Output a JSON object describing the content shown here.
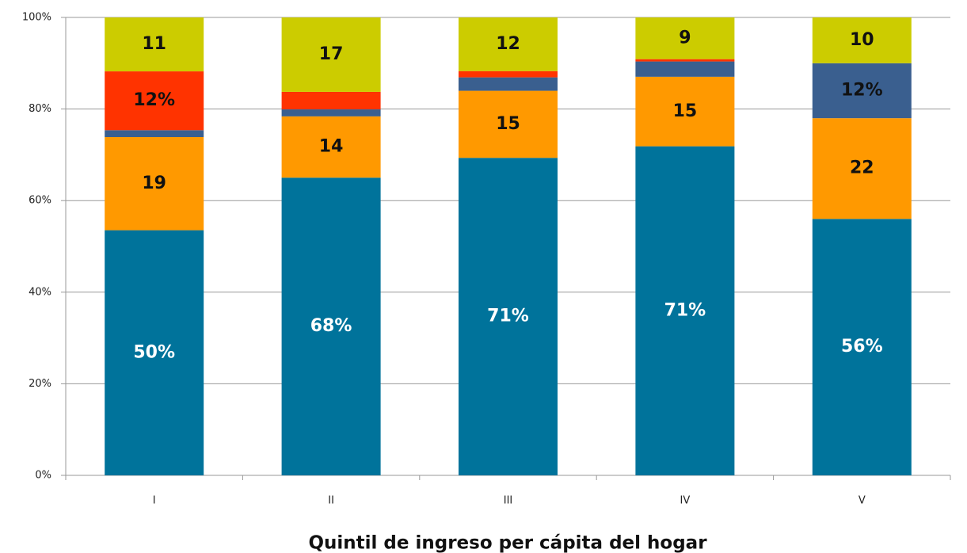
{
  "chart_data": {
    "type": "bar",
    "stacking": "percent",
    "categories": [
      "I",
      "II",
      "III",
      "IV",
      "V"
    ],
    "series": [
      {
        "color": "#00739b",
        "values": [
          50,
          68,
          71,
          71,
          56
        ],
        "value_labels": [
          "50%",
          "68%",
          "71%",
          "71%",
          "56%"
        ],
        "label_color": "#ffffff"
      },
      {
        "color": "#ff9900",
        "values": [
          19,
          14,
          15,
          15,
          22
        ],
        "value_labels": [
          "19",
          "14",
          "15",
          "15",
          "22"
        ],
        "label_color": "#111111"
      },
      {
        "color": "#3a5f8f",
        "values": [
          1.4,
          1.6,
          3,
          3.3,
          12
        ],
        "value_labels": [
          null,
          null,
          null,
          null,
          "12%"
        ],
        "label_color": "#111111"
      },
      {
        "color": "#ff3300",
        "values": [
          12,
          4,
          1.4,
          0.5,
          0
        ],
        "value_labels": [
          "12%",
          null,
          null,
          null,
          null
        ],
        "label_color": "#111111"
      },
      {
        "color": "#cccc00",
        "values": [
          11,
          17,
          12,
          9,
          10
        ],
        "value_labels": [
          "11",
          "17",
          "12",
          "9",
          "10"
        ],
        "label_color": "#111111"
      }
    ],
    "ylim": [
      0,
      100
    ],
    "yticks": [
      {
        "value": 0,
        "label": "0%"
      },
      {
        "value": 20,
        "label": "20%"
      },
      {
        "value": 40,
        "label": "40%"
      },
      {
        "value": 60,
        "label": "60%"
      },
      {
        "value": 80,
        "label": "80%"
      },
      {
        "value": 100,
        "label": "100%"
      }
    ],
    "x_label": "Quintil de ingreso per cápita del hogar",
    "grid": true
  }
}
